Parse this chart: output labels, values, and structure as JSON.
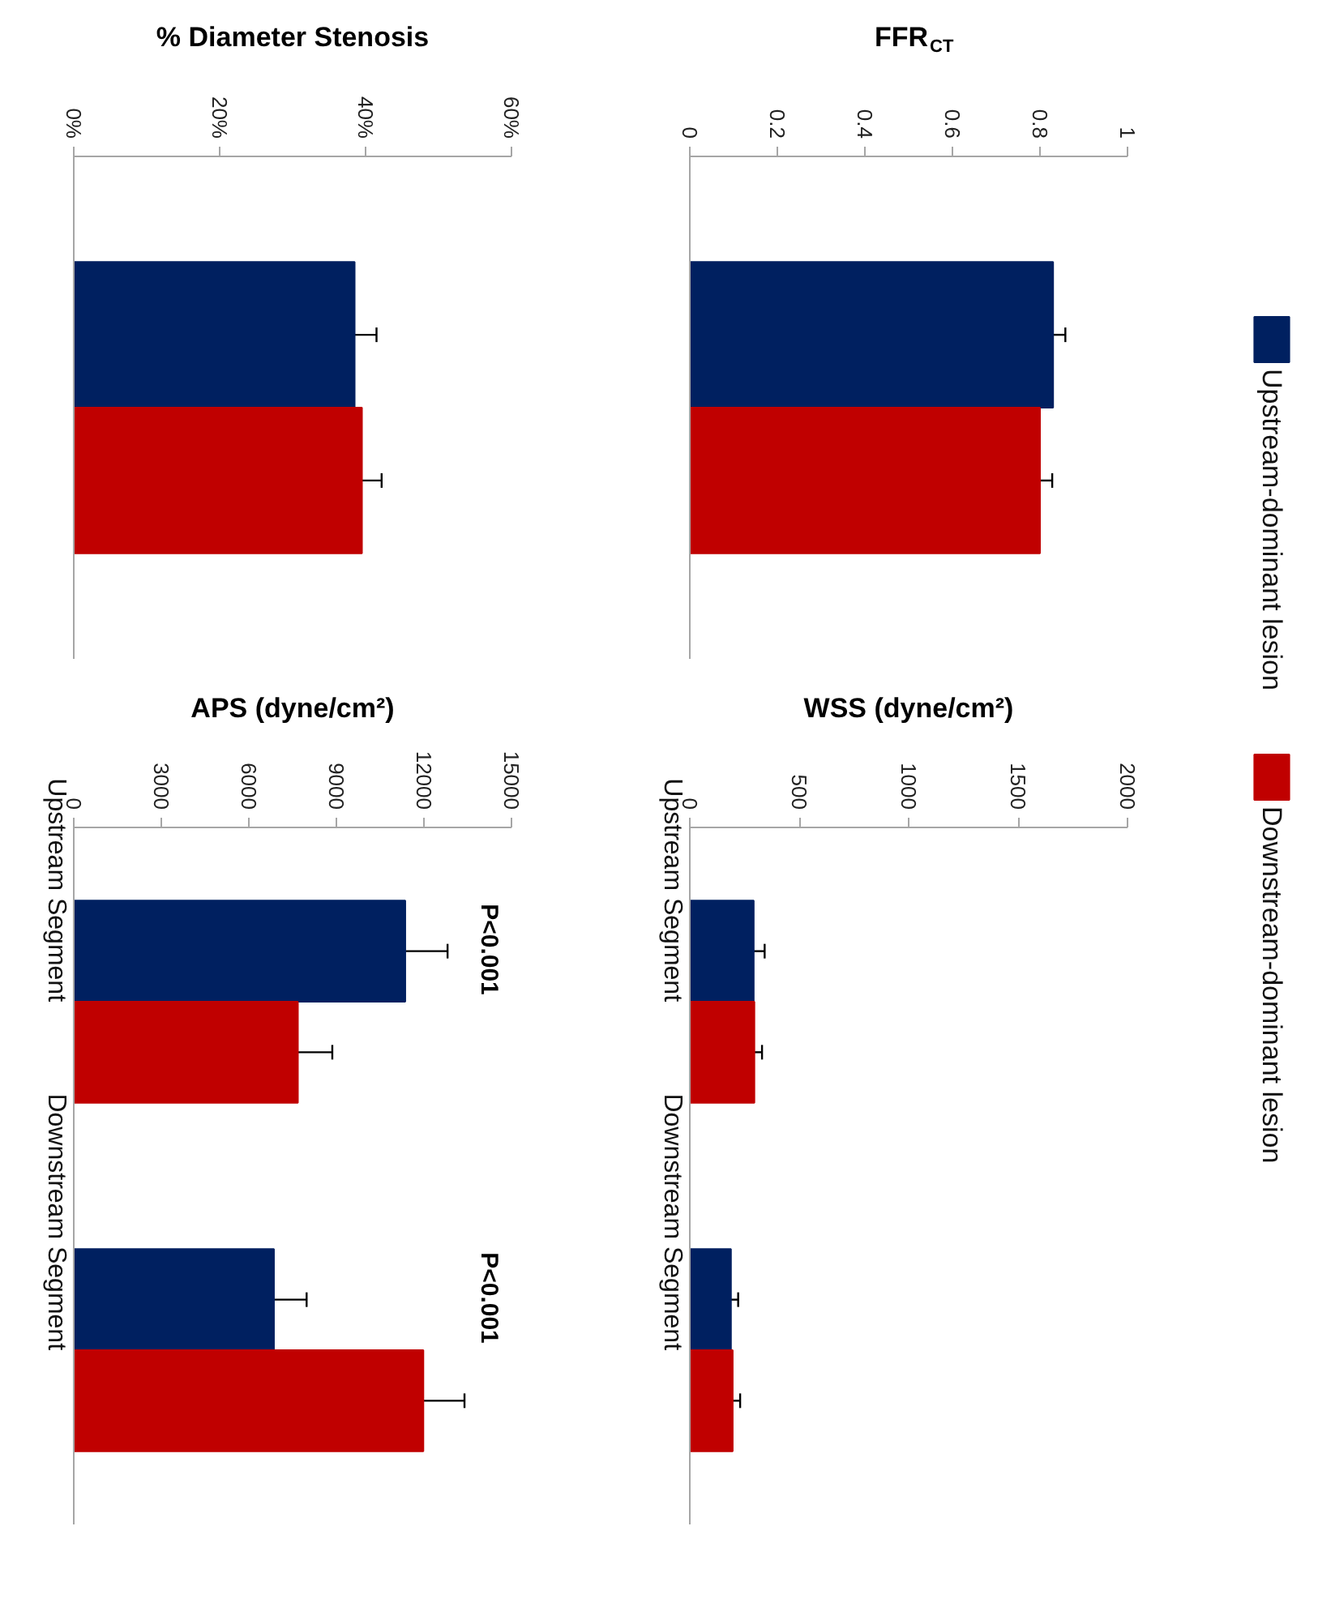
{
  "chart_data": [
    {
      "type": "bar",
      "orientation": "horizontal",
      "title": "% Diameter Stenosis",
      "categories": [
        null
      ],
      "xlim": [
        0,
        60
      ],
      "xticks": [
        {
          "value": 0,
          "label": "0%"
        },
        {
          "value": 20,
          "label": "20%"
        },
        {
          "value": 40,
          "label": "40%"
        },
        {
          "value": 60,
          "label": "60%"
        }
      ],
      "grid": false,
      "series": [
        {
          "color": "#002060",
          "values": [
            38.5
          ],
          "errors": [
            3
          ]
        },
        {
          "color": "#c00000",
          "values": [
            39.5
          ],
          "errors": [
            2.7
          ]
        }
      ]
    },
    {
      "type": "bar",
      "orientation": "horizontal",
      "title": "FFR$_{CT}$",
      "categories": [
        null
      ],
      "xlim": [
        0,
        1
      ],
      "xticks": [
        0,
        0.2,
        0.4,
        0.6,
        0.8,
        1
      ],
      "grid": false,
      "legend": "right",
      "series": [
        {
          "name": "Upstream-dominant lesion",
          "color": "#002060",
          "values": [
            0.83
          ],
          "errors": [
            0.028
          ]
        },
        {
          "name": "Downstream-dominant lesion",
          "color": "#c00000",
          "values": [
            0.8
          ],
          "errors": [
            0.028
          ]
        }
      ]
    },
    {
      "type": "bar",
      "orientation": "horizontal",
      "title": "APS (dyne/cm²)",
      "categories": [
        "Upstream Segment",
        "Downstream Segment"
      ],
      "xlim": [
        0,
        15000
      ],
      "xticks": [
        0,
        3000,
        6000,
        9000,
        12000,
        15000
      ],
      "grid": false,
      "annotations": [
        "P<0.001",
        "P<0.001"
      ],
      "series": [
        {
          "color": "#002060",
          "values": [
            11360,
            6860
          ],
          "errors": [
            1450,
            1120
          ]
        },
        {
          "color": "#c00000",
          "values": [
            7680,
            11980
          ],
          "errors": [
            1180,
            1410
          ]
        }
      ]
    },
    {
      "type": "bar",
      "orientation": "horizontal",
      "title": "WSS (dyne/cm²)",
      "categories": [
        "Upstream Segment",
        "Downstream Segment"
      ],
      "xlim": [
        0,
        2000
      ],
      "xticks": [
        0,
        500,
        1000,
        1500,
        2000
      ],
      "grid": false,
      "series": [
        {
          "color": "#002060",
          "values": [
            292,
            188
          ],
          "errors": [
            50,
            33
          ]
        },
        {
          "color": "#c00000",
          "values": [
            295,
            196
          ],
          "errors": [
            35,
            34
          ]
        }
      ]
    }
  ]
}
